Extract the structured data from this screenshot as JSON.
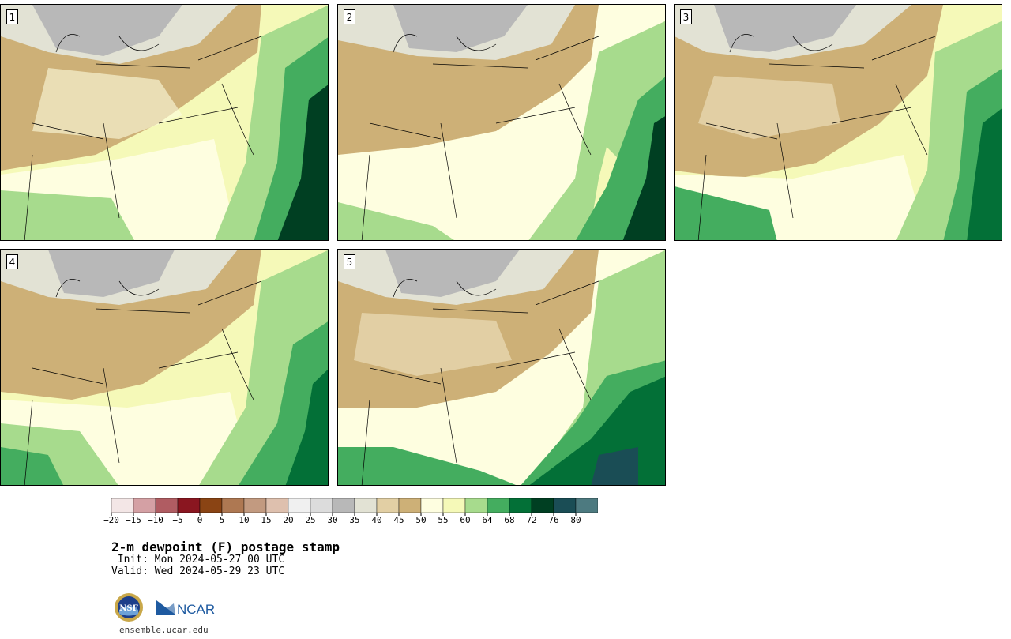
{
  "panels": [
    {
      "label": "1"
    },
    {
      "label": "2"
    },
    {
      "label": "3"
    },
    {
      "label": "4"
    },
    {
      "label": "5"
    }
  ],
  "colorbar": {
    "ticks": [
      "−20",
      "−15",
      "−10",
      "−5",
      "0",
      "5",
      "10",
      "15",
      "20",
      "25",
      "30",
      "35",
      "40",
      "45",
      "50",
      "55",
      "60",
      "64",
      "68",
      "72",
      "76",
      "80"
    ],
    "colors": [
      "#f3e6e6",
      "#d4a0a4",
      "#b05c62",
      "#8a1620",
      "#8a4414",
      "#ae7852",
      "#c29a80",
      "#dec0ae",
      "#f0f0f0",
      "#dcdcdc",
      "#b8b8b8",
      "#e2e2d4",
      "#e2cfa4",
      "#cdb077",
      "#fefee0",
      "#f5f9b8",
      "#a7db8d",
      "#44ad5f",
      "#037037",
      "#003f22",
      "#1a4d55",
      "#4d7a80"
    ]
  },
  "title": "2-m dewpoint (F) postage stamp",
  "init": " Init: Mon 2024-05-27 00 UTC",
  "valid": "Valid: Wed 2024-05-29 23 UTC",
  "logos": {
    "nsf": "NSF",
    "ncar": "NCAR"
  },
  "url": "ensemble.ucar.edu"
}
